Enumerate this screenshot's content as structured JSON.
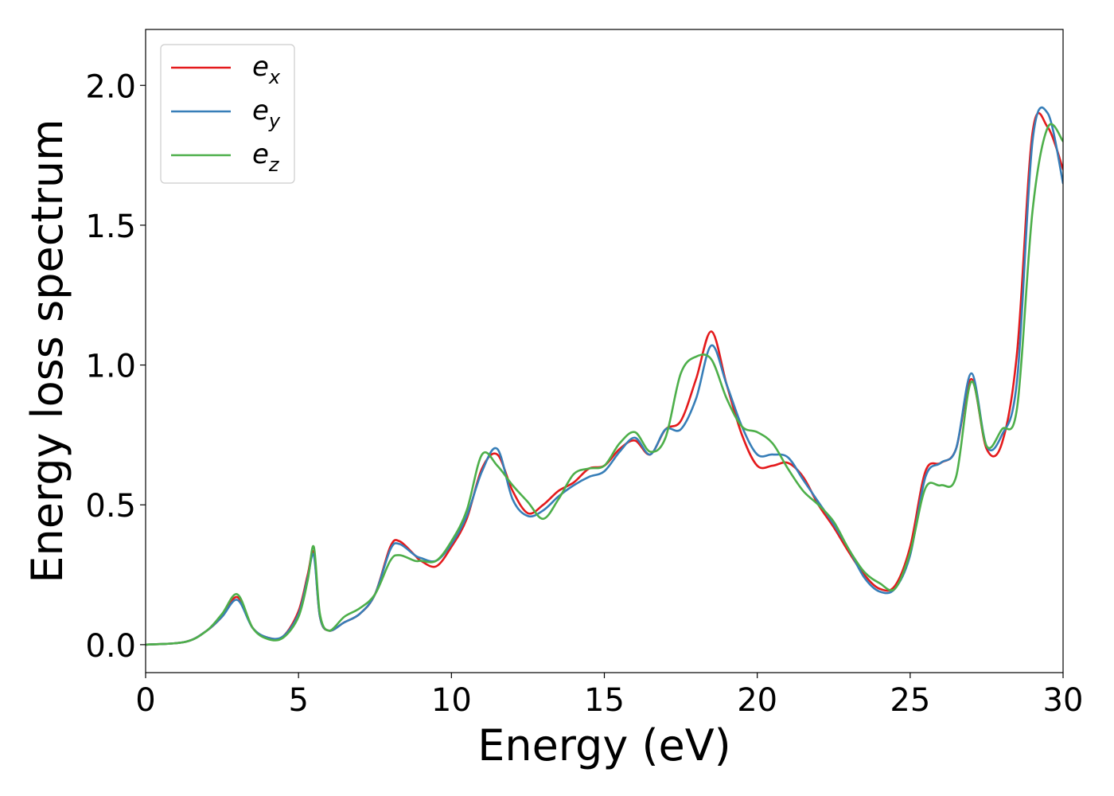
{
  "chart_data": {
    "type": "line",
    "title": "",
    "xlabel": "Energy (eV)",
    "ylabel": "Energy loss spectrum",
    "xlim": [
      0,
      30
    ],
    "ylim": [
      -0.1,
      2.2
    ],
    "xticks": [
      0,
      5,
      10,
      15,
      20,
      25,
      30
    ],
    "xtick_labels": [
      "0",
      "5",
      "10",
      "15",
      "20",
      "25",
      "30"
    ],
    "yticks": [
      0.0,
      0.5,
      1.0,
      1.5,
      2.0
    ],
    "ytick_labels": [
      "0.0",
      "0.5",
      "1.0",
      "1.5",
      "2.0"
    ],
    "grid": false,
    "legend_position": "top-left",
    "series": [
      {
        "name": "e_x",
        "legend_base": "e",
        "legend_sub": "x",
        "color": "#e41a1c",
        "x": [
          0,
          1.3,
          2.0,
          2.5,
          3.0,
          3.5,
          4.0,
          4.5,
          5.0,
          5.3,
          5.5,
          5.7,
          6.0,
          6.5,
          7.0,
          7.5,
          8.0,
          8.3,
          8.8,
          9.0,
          9.5,
          10.0,
          10.5,
          11.0,
          11.5,
          12.0,
          12.5,
          13.0,
          13.5,
          14.0,
          14.5,
          15.0,
          15.5,
          16.0,
          16.5,
          17.0,
          17.5,
          18.0,
          18.5,
          19.0,
          19.5,
          20.0,
          20.5,
          21.0,
          21.5,
          22.0,
          22.5,
          23.0,
          23.5,
          24.0,
          24.5,
          25.0,
          25.5,
          26.0,
          26.5,
          27.0,
          27.5,
          28.0,
          28.5,
          29.0,
          29.5,
          30.0
        ],
        "y": [
          0.0,
          0.01,
          0.05,
          0.1,
          0.17,
          0.06,
          0.025,
          0.03,
          0.12,
          0.25,
          0.33,
          0.1,
          0.05,
          0.08,
          0.11,
          0.18,
          0.35,
          0.37,
          0.32,
          0.3,
          0.28,
          0.35,
          0.45,
          0.63,
          0.68,
          0.55,
          0.47,
          0.5,
          0.55,
          0.58,
          0.63,
          0.64,
          0.7,
          0.73,
          0.68,
          0.77,
          0.8,
          0.95,
          1.12,
          0.93,
          0.75,
          0.64,
          0.64,
          0.65,
          0.6,
          0.5,
          0.42,
          0.33,
          0.25,
          0.2,
          0.21,
          0.35,
          0.62,
          0.65,
          0.7,
          0.95,
          0.7,
          0.72,
          1.05,
          1.83,
          1.85,
          1.7
        ]
      },
      {
        "name": "e_y",
        "legend_base": "e",
        "legend_sub": "y",
        "color": "#377eb8",
        "x": [
          0,
          1.3,
          2.0,
          2.5,
          3.0,
          3.5,
          4.0,
          4.5,
          5.0,
          5.3,
          5.5,
          5.7,
          6.0,
          6.5,
          7.0,
          7.5,
          8.0,
          8.3,
          8.8,
          9.0,
          9.5,
          10.0,
          10.5,
          11.0,
          11.5,
          12.0,
          12.5,
          13.0,
          13.5,
          14.0,
          14.5,
          15.0,
          15.5,
          16.0,
          16.5,
          17.0,
          17.5,
          18.0,
          18.5,
          19.0,
          19.5,
          20.0,
          20.5,
          21.0,
          21.5,
          22.0,
          22.5,
          23.0,
          23.5,
          24.0,
          24.5,
          25.0,
          25.5,
          26.0,
          26.5,
          27.0,
          27.5,
          28.0,
          28.5,
          29.0,
          29.5,
          30.0
        ],
        "y": [
          0.0,
          0.01,
          0.05,
          0.1,
          0.16,
          0.06,
          0.025,
          0.03,
          0.11,
          0.24,
          0.32,
          0.1,
          0.05,
          0.08,
          0.11,
          0.18,
          0.34,
          0.36,
          0.32,
          0.31,
          0.3,
          0.36,
          0.46,
          0.62,
          0.7,
          0.52,
          0.46,
          0.48,
          0.53,
          0.57,
          0.6,
          0.62,
          0.69,
          0.74,
          0.68,
          0.77,
          0.77,
          0.88,
          1.07,
          0.93,
          0.78,
          0.68,
          0.68,
          0.67,
          0.59,
          0.51,
          0.43,
          0.34,
          0.24,
          0.19,
          0.2,
          0.32,
          0.6,
          0.65,
          0.7,
          0.97,
          0.71,
          0.75,
          0.95,
          1.8,
          1.9,
          1.65
        ]
      },
      {
        "name": "e_z",
        "legend_base": "e",
        "legend_sub": "z",
        "color": "#4daf4a",
        "x": [
          0,
          1.3,
          2.0,
          2.5,
          3.0,
          3.5,
          4.0,
          4.5,
          5.0,
          5.3,
          5.5,
          5.7,
          6.0,
          6.5,
          7.0,
          7.5,
          8.0,
          8.3,
          8.8,
          9.0,
          9.5,
          10.0,
          10.5,
          11.0,
          11.5,
          12.0,
          12.5,
          13.0,
          13.5,
          14.0,
          14.5,
          15.0,
          15.5,
          16.0,
          16.5,
          17.0,
          17.5,
          18.0,
          18.5,
          19.0,
          19.5,
          20.0,
          20.5,
          21.0,
          21.5,
          22.0,
          22.5,
          23.0,
          23.5,
          24.0,
          24.5,
          25.0,
          25.5,
          26.0,
          26.5,
          27.0,
          27.5,
          28.0,
          28.5,
          29.0,
          29.5,
          30.0
        ],
        "y": [
          0.0,
          0.01,
          0.05,
          0.11,
          0.18,
          0.06,
          0.02,
          0.025,
          0.1,
          0.23,
          0.35,
          0.11,
          0.05,
          0.1,
          0.13,
          0.18,
          0.3,
          0.32,
          0.3,
          0.3,
          0.3,
          0.37,
          0.48,
          0.68,
          0.64,
          0.57,
          0.51,
          0.45,
          0.52,
          0.61,
          0.63,
          0.64,
          0.72,
          0.76,
          0.69,
          0.74,
          0.97,
          1.03,
          1.02,
          0.88,
          0.78,
          0.76,
          0.72,
          0.63,
          0.55,
          0.5,
          0.44,
          0.34,
          0.26,
          0.22,
          0.2,
          0.33,
          0.56,
          0.57,
          0.6,
          0.94,
          0.71,
          0.77,
          0.85,
          1.55,
          1.85,
          1.8
        ]
      }
    ]
  }
}
